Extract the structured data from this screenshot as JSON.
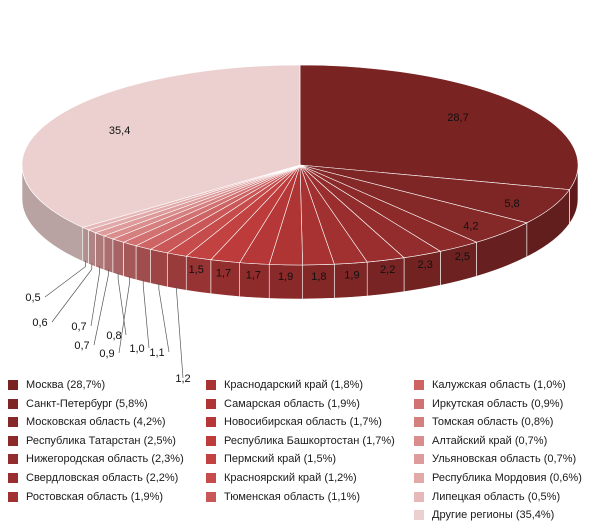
{
  "chart_data": {
    "type": "pie",
    "style": "3d-pie",
    "title": "",
    "start_angle_deg": 90,
    "direction": "clockwise",
    "legend_position": "bottom",
    "legend_columns": 3,
    "slices": [
      {
        "legend": "Москва (28,7%)",
        "label": "28,7",
        "value": 28.7,
        "color": "#7a2323"
      },
      {
        "legend": "Санкт-Петербург (5,8%)",
        "label": "5,8",
        "value": 5.8,
        "color": "#7e2525"
      },
      {
        "legend": "Московская область (4,2%)",
        "label": "4,2",
        "value": 4.2,
        "color": "#852828"
      },
      {
        "legend": "Республика Татарстан (2,5%)",
        "label": "2,5",
        "value": 2.5,
        "color": "#8c2a2a"
      },
      {
        "legend": "Нижегородская область (2,3%)",
        "label": "2,3",
        "value": 2.3,
        "color": "#932c2c"
      },
      {
        "legend": "Свердловская область (2,2%)",
        "label": "2,2",
        "value": 2.2,
        "color": "#9a2e2e"
      },
      {
        "legend": "Ростовская область (1,9%)",
        "label": "1,9",
        "value": 1.9,
        "color": "#a13030"
      },
      {
        "legend": "Краснодарский край (1,8%)",
        "label": "1,8",
        "value": 1.8,
        "color": "#a83232"
      },
      {
        "legend": "Самарская область (1,9%)",
        "label": "1,9",
        "value": 1.9,
        "color": "#af3434"
      },
      {
        "legend": "Новосибирская область (1,7%)",
        "label": "1,7",
        "value": 1.7,
        "color": "#b63737"
      },
      {
        "legend": "Республика Башкортостан (1,7%)",
        "label": "1,7",
        "value": 1.7,
        "color": "#bd3b3b"
      },
      {
        "legend": "Пермский край (1,5%)",
        "label": "1,5",
        "value": 1.5,
        "color": "#c24141"
      },
      {
        "legend": "Красноярский край (1,2%)",
        "label": "1,2",
        "value": 1.2,
        "color": "#c64b4b"
      },
      {
        "legend": "Тюменская область (1,1%)",
        "label": "1,1",
        "value": 1.1,
        "color": "#ca5757"
      },
      {
        "legend": "Калужская область (1,0%)",
        "label": "1,0",
        "value": 1.0,
        "color": "#ce6363"
      },
      {
        "legend": "Иркутская область (0,9%)",
        "label": "0,9",
        "value": 0.9,
        "color": "#d27171"
      },
      {
        "legend": "Томская область (0,8%)",
        "label": "0,8",
        "value": 0.8,
        "color": "#d67f7f"
      },
      {
        "legend": "Алтайский край (0,7%)",
        "label": "0,7",
        "value": 0.7,
        "color": "#da8d8d"
      },
      {
        "legend": "Ульяновская область (0,7%)",
        "label": "0,7",
        "value": 0.7,
        "color": "#de9b9b"
      },
      {
        "legend": "Республика Мордовия (0,6%)",
        "label": "0,6",
        "value": 0.6,
        "color": "#e2a9a9"
      },
      {
        "legend": "Липецкая область (0,5%)",
        "label": "0,5",
        "value": 0.5,
        "color": "#e6b8b8"
      },
      {
        "legend": "Другие регионы (35,4%)",
        "label": "35,4",
        "value": 35.4,
        "color": "#ecd0d0"
      }
    ]
  }
}
